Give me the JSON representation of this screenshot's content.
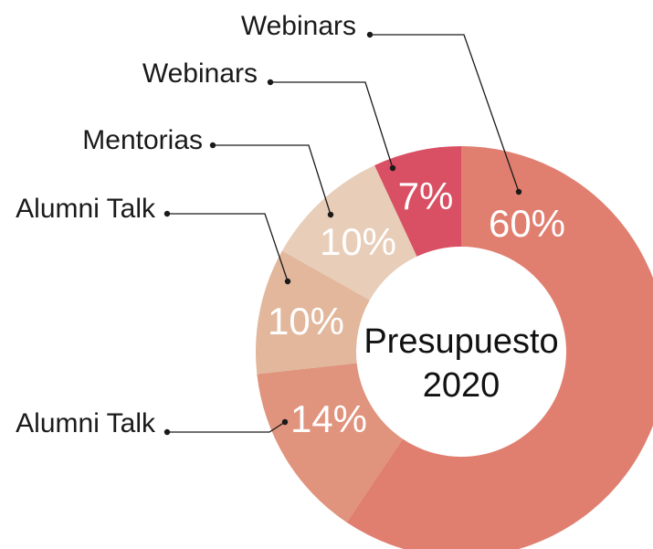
{
  "chart_data": {
    "type": "donut",
    "title": [
      "Presupuesto",
      "2020"
    ],
    "categories": [
      "Webinars",
      "Alumni Talk",
      "Alumni Talk",
      "Mentorias",
      "Webinars"
    ],
    "values": [
      60,
      14,
      10,
      10,
      7
    ],
    "value_labels": [
      "60%",
      "14%",
      "10%",
      "10%",
      "7%"
    ],
    "colors": [
      "#e07f70",
      "#e0937d",
      "#e2b79c",
      "#e8cdb8",
      "#d94f63"
    ]
  }
}
